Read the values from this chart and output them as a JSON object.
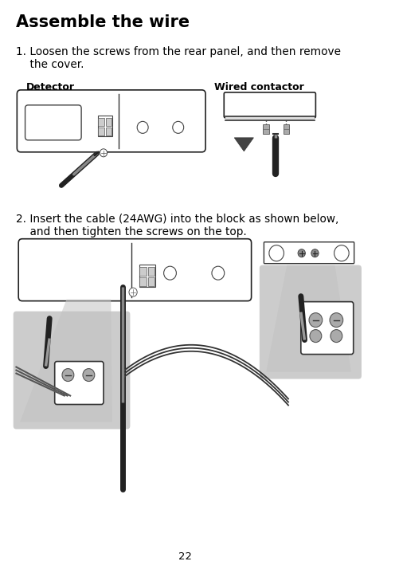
{
  "title": "Assemble the wire",
  "step1_line1": "1. Loosen the screws from the rear panel, and then remove",
  "step1_line2": "    the cover.",
  "step2_line1": "2. Insert the cable (24AWG) into the block as shown below,",
  "step2_line2": "    and then tighten the screws on the top.",
  "label_detector": "Detector",
  "label_wired": "Wired contactor",
  "page_number": "22",
  "bg_color": "#ffffff",
  "text_color": "#000000",
  "gray_color": "#cccccc",
  "dark_color": "#333333",
  "mid_color": "#666666",
  "title_fontsize": 15,
  "body_fontsize": 9.8,
  "label_fontsize": 9.0
}
